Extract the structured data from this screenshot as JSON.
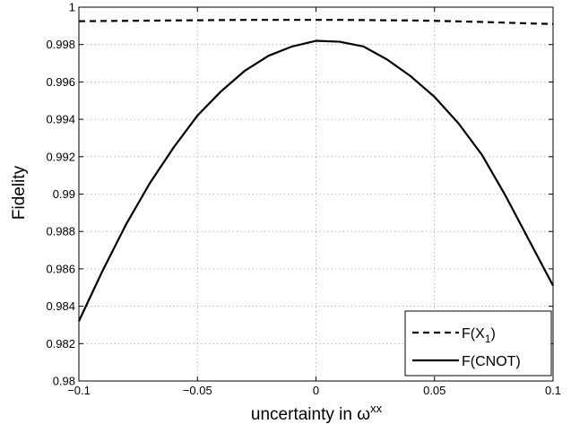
{
  "chart_data": {
    "type": "line",
    "xlabel": {
      "text": "uncertainty in ",
      "symbol": "ω",
      "superscript": "xx"
    },
    "ylabel": "Fidelity",
    "xlim": [
      -0.1,
      0.1
    ],
    "ylim": [
      0.98,
      1.0
    ],
    "xticks": [
      -0.1,
      -0.05,
      0,
      0.05,
      0.1
    ],
    "xtick_labels": [
      "−0.1",
      "−0.05",
      "0",
      "0.05",
      "0.1"
    ],
    "yticks": [
      0.98,
      0.982,
      0.984,
      0.986,
      0.988,
      0.99,
      0.992,
      0.994,
      0.996,
      0.998,
      1.0
    ],
    "ytick_labels": [
      "0.98",
      "0.982",
      "0.984",
      "0.986",
      "0.988",
      "0.99",
      "0.992",
      "0.994",
      "0.996",
      "0.998",
      "1"
    ],
    "grid": true,
    "legend_position": "bottom-right",
    "x": [
      -0.1,
      -0.09,
      -0.08,
      -0.07,
      -0.06,
      -0.05,
      -0.04,
      -0.03,
      -0.02,
      -0.01,
      0,
      0.01,
      0.02,
      0.03,
      0.04,
      0.05,
      0.06,
      0.07,
      0.08,
      0.09,
      0.1
    ],
    "series": [
      {
        "name": "F(X_1)",
        "legend": {
          "base": "F(X",
          "sub": "1",
          "end": ")"
        },
        "style": "dashed",
        "color": "#000000",
        "values": [
          0.99925,
          0.99926,
          0.99927,
          0.99928,
          0.99929,
          0.9993,
          0.99931,
          0.99932,
          0.99932,
          0.99932,
          0.99932,
          0.99932,
          0.99931,
          0.9993,
          0.99929,
          0.99927,
          0.99924,
          0.99921,
          0.99917,
          0.99913,
          0.9991
        ]
      },
      {
        "name": "F(CNOT)",
        "legend": {
          "base": "F(CNOT)"
        },
        "style": "solid",
        "color": "#000000",
        "values": [
          0.9832,
          0.9859,
          0.9884,
          0.9906,
          0.9925,
          0.9942,
          0.9955,
          0.9966,
          0.9974,
          0.9979,
          0.9982,
          0.99815,
          0.9979,
          0.9972,
          0.9963,
          0.9952,
          0.9938,
          0.9921,
          0.9899,
          0.9875,
          0.9851
        ]
      }
    ]
  }
}
